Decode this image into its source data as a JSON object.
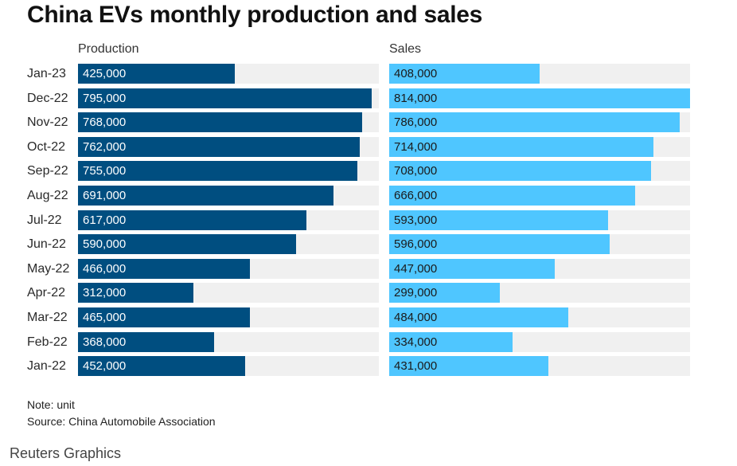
{
  "chart_data": {
    "type": "bar",
    "orientation": "horizontal",
    "title": "China EVs monthly production and sales",
    "categories": [
      "Jan-23",
      "Dec-22",
      "Nov-22",
      "Oct-22",
      "Sep-22",
      "Aug-22",
      "Jul-22",
      "Jun-22",
      "May-22",
      "Apr-22",
      "Mar-22",
      "Feb-22",
      "Jan-22"
    ],
    "series": [
      {
        "name": "Production",
        "color": "#004e80",
        "values": [
          425000,
          795000,
          768000,
          762000,
          755000,
          691000,
          617000,
          590000,
          466000,
          312000,
          465000,
          368000,
          452000
        ],
        "labels": [
          "425,000",
          "795,000",
          "768,000",
          "762,000",
          "755,000",
          "691,000",
          "617,000",
          "590,000",
          "466,000",
          "312,000",
          "465,000",
          "368,000",
          "452,000"
        ]
      },
      {
        "name": "Sales",
        "color": "#4fc6ff",
        "values": [
          408000,
          814000,
          786000,
          714000,
          708000,
          666000,
          593000,
          596000,
          447000,
          299000,
          484000,
          334000,
          431000
        ],
        "labels": [
          "408,000",
          "814,000",
          "786,000",
          "714,000",
          "708,000",
          "666,000",
          "593,000",
          "596,000",
          "447,000",
          "299,000",
          "484,000",
          "334,000",
          "431,000"
        ]
      }
    ],
    "xlim": [
      0,
      814000
    ],
    "note": "Note: unit",
    "source": "Source: China Automobile Association"
  },
  "footer": {
    "brand": "Reuters Graphics"
  }
}
